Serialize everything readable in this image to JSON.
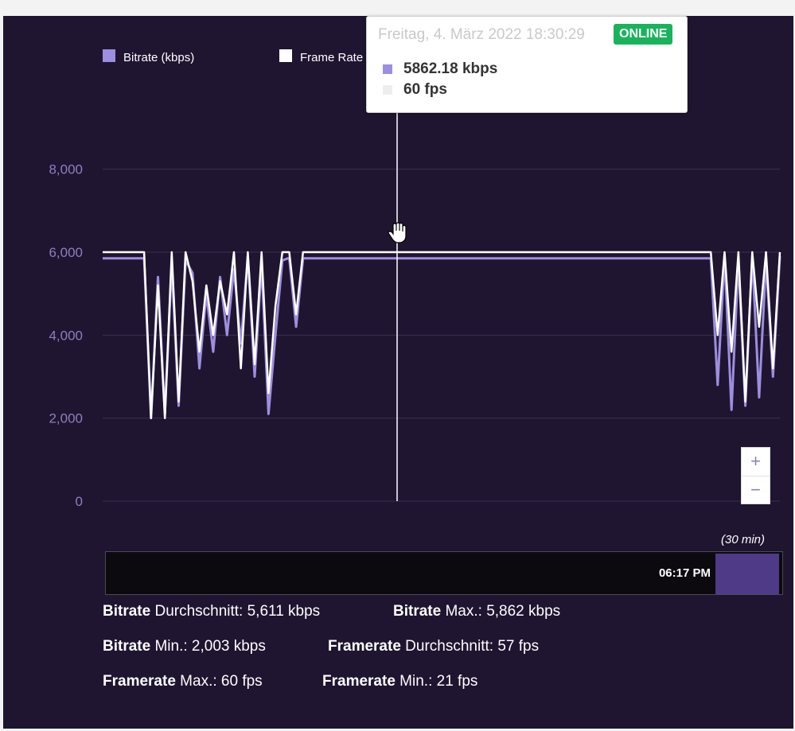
{
  "chart_data": {
    "type": "line",
    "series": [
      {
        "name": "Bitrate (kbps)",
        "color": "#9d8ee0",
        "values": [
          5850,
          5850,
          5850,
          5850,
          5850,
          5850,
          5850,
          2003,
          5400,
          2100,
          5700,
          2300,
          5800,
          5500,
          3200,
          5000,
          3600,
          5400,
          4000,
          5600,
          3800,
          5900,
          3000,
          5700,
          2100,
          4000,
          5800,
          5862,
          4200,
          5850,
          5850,
          5850,
          5850,
          5850,
          5850,
          5850,
          5850,
          5850,
          5850,
          5850,
          5850,
          5850,
          5850,
          5850,
          5850,
          5850,
          5850,
          5850,
          5850,
          5850,
          5850,
          5850,
          5850,
          5850,
          5850,
          5850,
          5850,
          5850,
          5850,
          5850,
          5850,
          5850,
          5850,
          5850,
          5850,
          5850,
          5850,
          5850,
          5850,
          5850,
          5850,
          5850,
          5850,
          5850,
          5850,
          5850,
          5850,
          5850,
          5850,
          5850,
          5850,
          5850,
          5850,
          5850,
          5850,
          5850,
          5850,
          5850,
          5850,
          2800,
          5900,
          2200,
          5800,
          2300,
          5900,
          2500,
          5800,
          3000,
          5900
        ]
      },
      {
        "name": "Frame Rate",
        "color": "#ffffff",
        "values": [
          6000,
          6000,
          6000,
          6000,
          6000,
          6000,
          6000,
          2000,
          5200,
          2000,
          6000,
          2400,
          6000,
          5300,
          3600,
          5200,
          4000,
          5300,
          4500,
          6000,
          3200,
          6000,
          3300,
          6000,
          2600,
          4700,
          6000,
          6000,
          4500,
          6000,
          6000,
          6000,
          6000,
          6000,
          6000,
          6000,
          6000,
          6000,
          6000,
          6000,
          6000,
          6000,
          6000,
          6000,
          6000,
          6000,
          6000,
          6000,
          6000,
          6000,
          6000,
          6000,
          6000,
          6000,
          6000,
          6000,
          6000,
          6000,
          6000,
          6000,
          6000,
          6000,
          6000,
          6000,
          6000,
          6000,
          6000,
          6000,
          6000,
          6000,
          6000,
          6000,
          6000,
          6000,
          6000,
          6000,
          6000,
          6000,
          6000,
          6000,
          6000,
          6000,
          6000,
          6000,
          6000,
          6000,
          6000,
          6000,
          6000,
          4000,
          6000,
          3600,
          6000,
          2400,
          6000,
          4200,
          6000,
          3200,
          6000
        ]
      }
    ],
    "yticks": [
      0,
      2000,
      4000,
      6000,
      8000
    ],
    "ytick_labels": [
      "0",
      "2,000",
      "4,000",
      "6,000",
      "8,000"
    ],
    "ylim": [
      0,
      9000
    ],
    "grid": true,
    "legend_position": "top-left",
    "tooltip": {
      "date": "Freitag, 4. März 2022 18:30:29",
      "badge": "ONLINE",
      "bitrate": "5862.18 kbps",
      "framerate": "60 fps"
    }
  },
  "zoom": {
    "in": "+",
    "out": "−"
  },
  "navigator": {
    "range_label": "(30 min)",
    "time_label": "06:17 PM"
  },
  "stats": [
    {
      "label": "Bitrate",
      "text": " Durchschnitt: 5,611 kbps"
    },
    {
      "label": "Bitrate",
      "text": " Max.: 5,862 kbps"
    },
    {
      "label": "Bitrate",
      "text": " Min.: 2,003 kbps"
    },
    {
      "label": "Framerate",
      "text": " Durchschnitt: 57 fps"
    },
    {
      "label": "Framerate",
      "text": " Max.: 60 fps"
    },
    {
      "label": "Framerate",
      "text": " Min.: 21 fps"
    }
  ],
  "colors": {
    "background": "#1f1530",
    "accent": "#9d8ee0",
    "online": "#19b35c"
  }
}
